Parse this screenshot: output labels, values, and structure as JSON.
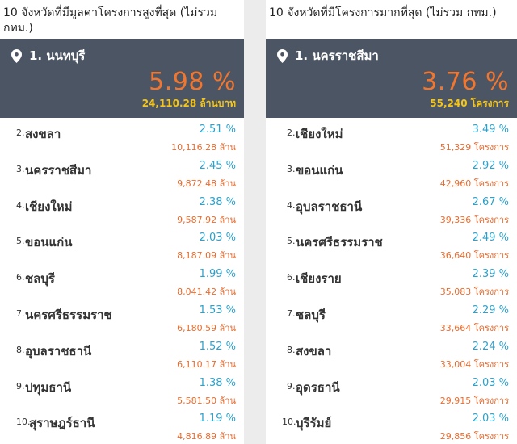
{
  "left_panel": {
    "title": "10 จังหวัดที่มีมูลค่าโครงการสูงที่สุด (ไม่รวม กทม.)",
    "top": {
      "name": "1. นนทบุรี",
      "pct": "5.98 %",
      "amount": "24,110.28 ล้านบาท"
    },
    "rows": [
      {
        "rank": "2.",
        "name": "สงขลา",
        "pct": "2.51 %",
        "amount": "10,116.28 ล้าน"
      },
      {
        "rank": "3.",
        "name": "นครราชสีมา",
        "pct": "2.45 %",
        "amount": "9,872.48 ล้าน"
      },
      {
        "rank": "4.",
        "name": "เชียงใหม่",
        "pct": "2.38 %",
        "amount": "9,587.92 ล้าน"
      },
      {
        "rank": "5.",
        "name": "ขอนแก่น",
        "pct": "2.03 %",
        "amount": "8,187.09 ล้าน"
      },
      {
        "rank": "6.",
        "name": "ชลบุรี",
        "pct": "1.99 %",
        "amount": "8,041.42 ล้าน"
      },
      {
        "rank": "7.",
        "name": "นครศรีธรรมราช",
        "pct": "1.53 %",
        "amount": "6,180.59 ล้าน"
      },
      {
        "rank": "8.",
        "name": "อุบลราชธานี",
        "pct": "1.52 %",
        "amount": "6,110.17 ล้าน"
      },
      {
        "rank": "9.",
        "name": "ปทุมธานี",
        "pct": "1.38 %",
        "amount": "5,581.50 ล้าน"
      },
      {
        "rank": "10.",
        "name": "สุราษฎร์ธานี",
        "pct": "1.19 %",
        "amount": "4,816.89 ล้าน"
      }
    ]
  },
  "right_panel": {
    "title": "10 จังหวัดที่มีโครงการมากที่สุด (ไม่รวม กทม.)",
    "top": {
      "name": "1. นครราชสีมา",
      "pct": "3.76 %",
      "amount": "55,240 โครงการ"
    },
    "rows": [
      {
        "rank": "2.",
        "name": "เชียงใหม่",
        "pct": "3.49 %",
        "amount": "51,329 โครงการ"
      },
      {
        "rank": "3.",
        "name": "ขอนแก่น",
        "pct": "2.92 %",
        "amount": "42,960 โครงการ"
      },
      {
        "rank": "4.",
        "name": "อุบลราชธานี",
        "pct": "2.67 %",
        "amount": "39,336 โครงการ"
      },
      {
        "rank": "5.",
        "name": "นครศรีธรรมราช",
        "pct": "2.49 %",
        "amount": "36,640 โครงการ"
      },
      {
        "rank": "6.",
        "name": "เชียงราย",
        "pct": "2.39 %",
        "amount": "35,083 โครงการ"
      },
      {
        "rank": "7.",
        "name": "ชลบุรี",
        "pct": "2.29 %",
        "amount": "33,664 โครงการ"
      },
      {
        "rank": "8.",
        "name": "สงขลา",
        "pct": "2.24 %",
        "amount": "33,004 โครงการ"
      },
      {
        "rank": "9.",
        "name": "อุดรธานี",
        "pct": "2.03 %",
        "amount": "29,915 โครงการ"
      },
      {
        "rank": "10.",
        "name": "บุรีรัมย์",
        "pct": "2.03 %",
        "amount": "29,856 โครงการ"
      }
    ]
  },
  "colors": {
    "card_bg": "#4c5563",
    "top_pct": "#f2762e",
    "top_amount": "#f5c518",
    "row_pct": "#2ea0c9",
    "row_amount": "#ea6b2d"
  },
  "icons": {
    "location": "map-pin-icon"
  }
}
